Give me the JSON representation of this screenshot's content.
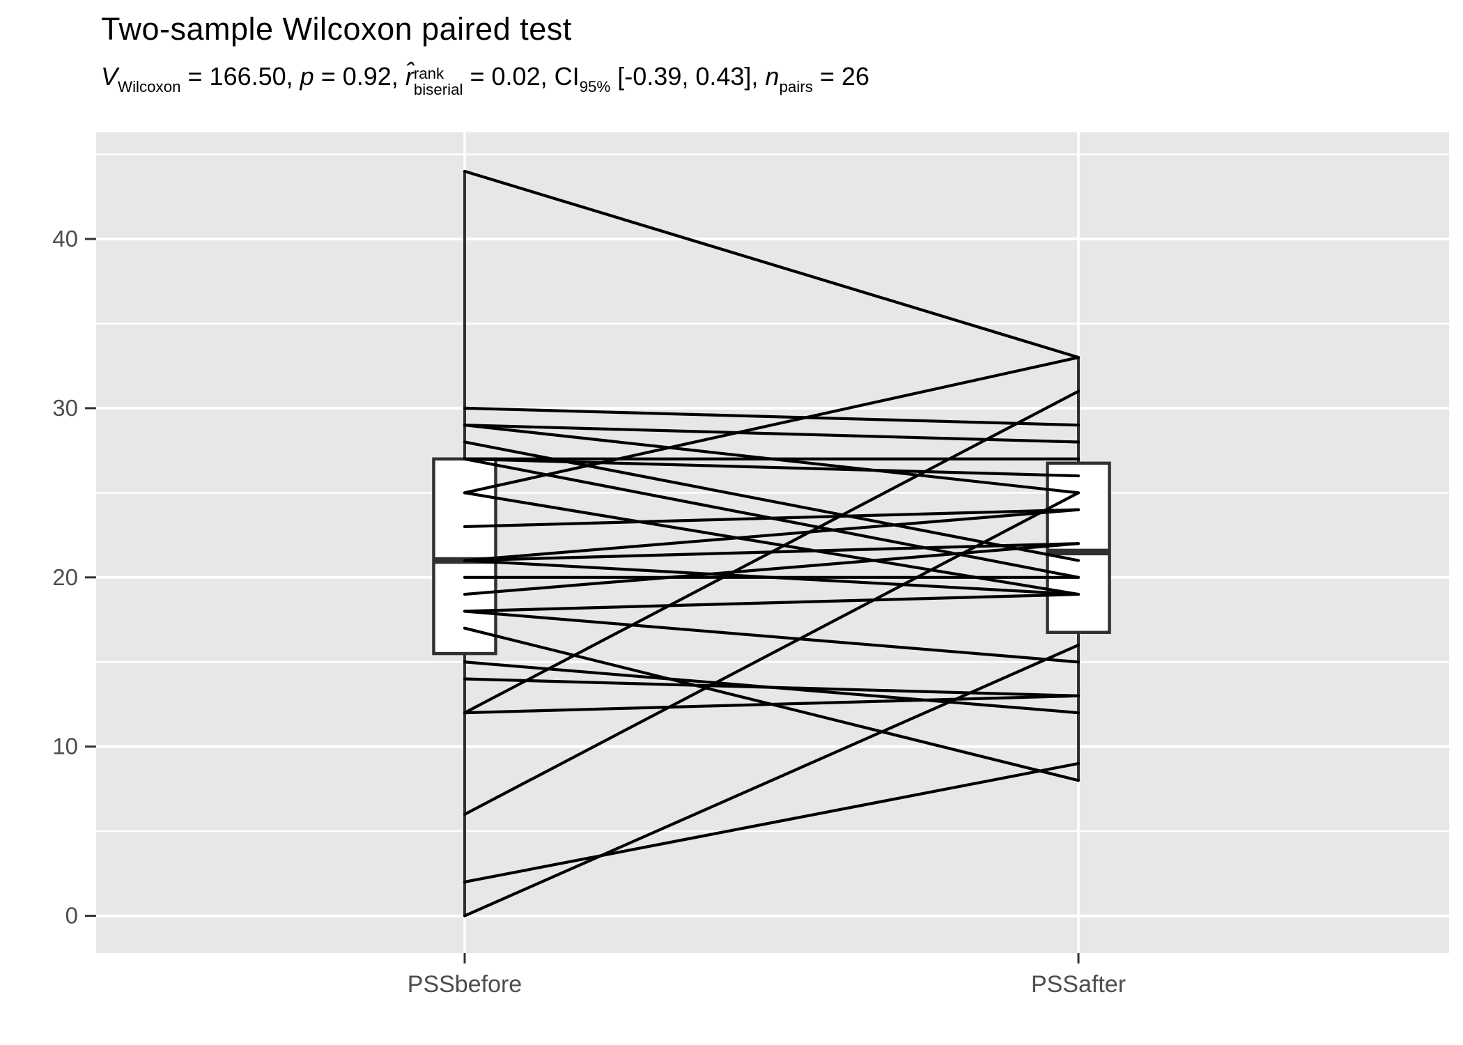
{
  "title": "Two-sample Wilcoxon paired test",
  "subtitle": {
    "v_letter": "V",
    "v_sub": "Wilcoxon",
    "v_eq": " = 166.50, ",
    "p_letter": "p",
    "p_eq": " = 0.92, ",
    "r_letter": "r̂",
    "r_sup": "rank",
    "r_sub": "biserial",
    "r_eq": " = 0.02, ",
    "ci_label": "CI",
    "ci_sub": "95%",
    "ci_val": " [-0.39, 0.43], ",
    "n_letter": "n",
    "n_sub": "pairs",
    "n_eq": " = 26",
    "full_text": "V Wilcoxon = 166.50, p = 0.92, r̂ rank biserial = 0.02, CI 95% [-0.39, 0.43], n pairs = 26"
  },
  "chart_data": {
    "type": "line",
    "subtype": "paired-observations-with-boxplots",
    "title": "Two-sample Wilcoxon paired test",
    "xlabel": "",
    "ylabel": "",
    "categories": [
      "PSSbefore",
      "PSSafter"
    ],
    "n_pairs": 26,
    "pairs_note": "each pair is [PSSbefore, PSSafter]",
    "pairs": [
      [
        44,
        33
      ],
      [
        30,
        29
      ],
      [
        29,
        28
      ],
      [
        29,
        25
      ],
      [
        28,
        21
      ],
      [
        27,
        27
      ],
      [
        27,
        26
      ],
      [
        27,
        20
      ],
      [
        25,
        33
      ],
      [
        25,
        19
      ],
      [
        23,
        24
      ],
      [
        21,
        24
      ],
      [
        21,
        22
      ],
      [
        21,
        19
      ],
      [
        20,
        20
      ],
      [
        19,
        22
      ],
      [
        18,
        19
      ],
      [
        18,
        15
      ],
      [
        17,
        8
      ],
      [
        15,
        12
      ],
      [
        14,
        13
      ],
      [
        12,
        31
      ],
      [
        12,
        13
      ],
      [
        6,
        25
      ],
      [
        2,
        9
      ],
      [
        0,
        16
      ]
    ],
    "boxplots": [
      {
        "category": "PSSbefore",
        "whisker_min": 0,
        "q1": 15.5,
        "median": 21,
        "q3": 27,
        "whisker_max": 44
      },
      {
        "category": "PSSafter",
        "whisker_min": 8,
        "q1": 16.75,
        "median": 21.5,
        "q3": 26.75,
        "whisker_max": 33
      }
    ],
    "y_ticks": [
      0,
      10,
      20,
      30,
      40
    ],
    "y_tick_labels": [
      "0",
      "10",
      "20",
      "30",
      "40"
    ],
    "y_minor_ticks": [
      5,
      15,
      25,
      35,
      45
    ],
    "ylim": [
      -2.2,
      46.3
    ],
    "grid": true,
    "legend": false,
    "colors": {
      "panel_bg": "#E7E7E7",
      "grid": "#FFFFFF",
      "pair_line": "#000000",
      "box_stroke": "#303030",
      "box_fill": "#FFFFFF",
      "tick_mark": "#333333",
      "axis_text": "#4D4D4D",
      "title_text": "#000000"
    }
  }
}
